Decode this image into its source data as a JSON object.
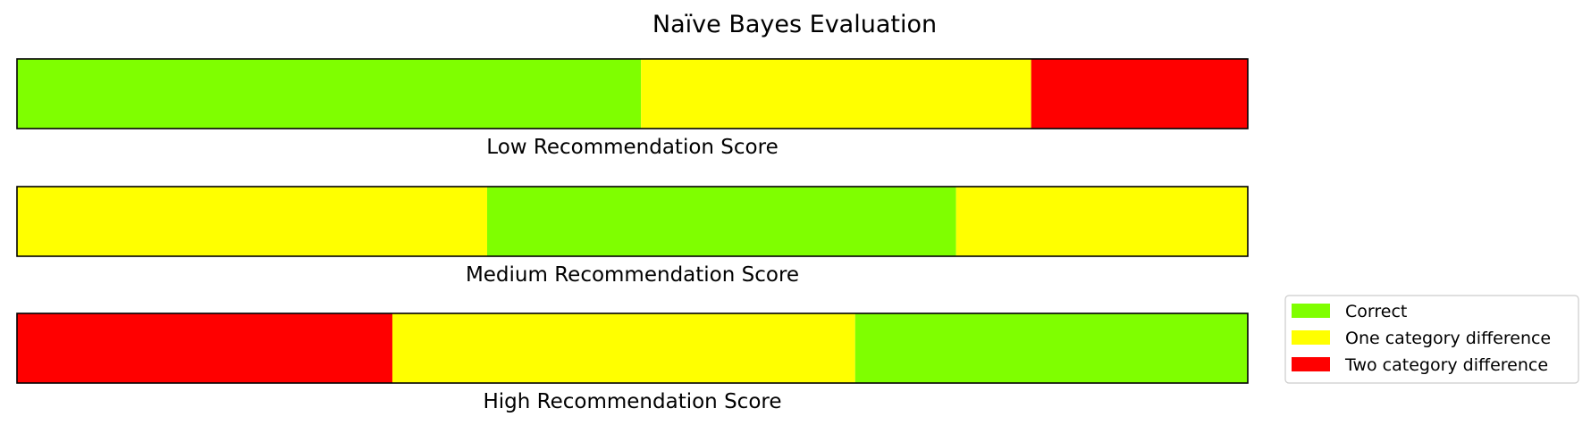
{
  "chart_data": {
    "type": "bar",
    "title": "Naïve Bayes Evaluation",
    "orientation": "horizontal-stacked",
    "xlim": [
      0,
      1
    ],
    "grid": false,
    "legend_position": "bottom-right",
    "categories": [
      "Low Recommendation Score",
      "Medium Recommendation Score",
      "High Recommendation Score"
    ],
    "rows": [
      {
        "label": "Low Recommendation Score",
        "segments": [
          {
            "category": "Correct",
            "value": 0.507
          },
          {
            "category": "One category difference",
            "value": 0.317
          },
          {
            "category": "Two category difference",
            "value": 0.176
          }
        ]
      },
      {
        "label": "Medium Recommendation Score",
        "segments": [
          {
            "category": "One category difference",
            "value": 0.382
          },
          {
            "category": "Correct",
            "value": 0.381
          },
          {
            "category": "One category difference",
            "value": 0.237
          }
        ]
      },
      {
        "label": "High Recommendation Score",
        "segments": [
          {
            "category": "Two category difference",
            "value": 0.305
          },
          {
            "category": "One category difference",
            "value": 0.376
          },
          {
            "category": "Correct",
            "value": 0.319
          }
        ]
      }
    ],
    "legend": [
      {
        "name": "Correct",
        "color": "#7fff00"
      },
      {
        "name": "One category difference",
        "color": "#ffff00"
      },
      {
        "name": "Two category difference",
        "color": "#ff0000"
      }
    ]
  }
}
